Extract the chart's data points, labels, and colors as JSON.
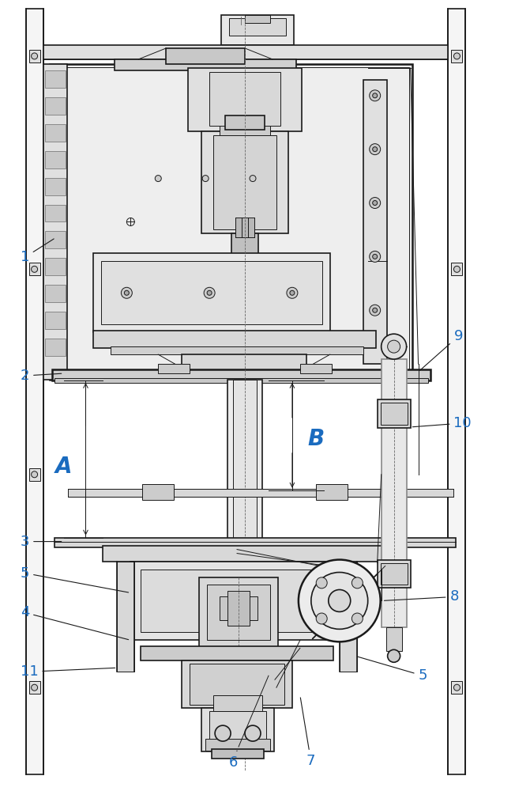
{
  "bg_color": "#ffffff",
  "line_color": "#1a1a1a",
  "label_color": "#1a6bbf",
  "figsize": [
    6.52,
    10.0
  ],
  "dpi": 100,
  "dim_A_color": "#1a1a1a",
  "dim_B_color": "#1a6bbf"
}
